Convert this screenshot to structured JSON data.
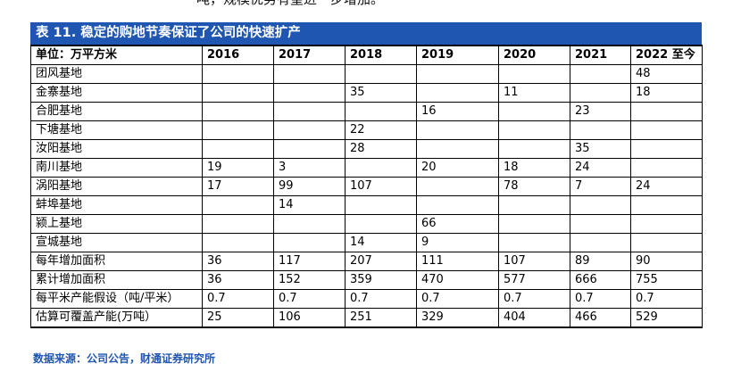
{
  "top_text": "吨，规模优势有望进一步增加。",
  "table": {
    "title": "表 11. 稳定的购地节奏保证了公司的快速扩产",
    "headers": [
      "单位：万平方米",
      "2016",
      "2017",
      "2018",
      "2019",
      "2020",
      "2021",
      "2022 至今"
    ],
    "rows": [
      [
        "团风基地",
        "",
        "",
        "",
        "",
        "",
        "",
        "48"
      ],
      [
        "金寨基地",
        "",
        "",
        "35",
        "",
        "11",
        "",
        "18"
      ],
      [
        "合肥基地",
        "",
        "",
        "",
        "16",
        "",
        "23",
        ""
      ],
      [
        "下塘基地",
        "",
        "",
        "22",
        "",
        "",
        "",
        ""
      ],
      [
        "汝阳基地",
        "",
        "",
        "28",
        "",
        "",
        "35",
        ""
      ],
      [
        "南川基地",
        "19",
        "3",
        "",
        "20",
        "18",
        "24",
        ""
      ],
      [
        "涡阳基地",
        "17",
        "99",
        "107",
        "",
        "78",
        "7",
        "24"
      ],
      [
        "蚌埠基地",
        "",
        "14",
        "",
        "",
        "",
        "",
        ""
      ],
      [
        "颍上基地",
        "",
        "",
        "",
        "66",
        "",
        "",
        ""
      ],
      [
        "宣城基地",
        "",
        "",
        "14",
        "9",
        "",
        "",
        ""
      ],
      [
        "每年增加面积",
        "36",
        "117",
        "207",
        "111",
        "107",
        "89",
        "90"
      ],
      [
        "累计增加面积",
        "36",
        "152",
        "359",
        "470",
        "577",
        "666",
        "755"
      ],
      [
        "每平米产能假设（吨/平米）",
        "0.7",
        "0.7",
        "0.7",
        "0.7",
        "0.7",
        "0.7",
        "0.7"
      ],
      [
        "估算可覆盖产能(万吨）",
        "25",
        "106",
        "251",
        "329",
        "404",
        "466",
        "529"
      ]
    ]
  },
  "source": "数据来源：公司公告，财通证券研究所",
  "colors": {
    "title_bg": "#1f56b1",
    "title_text": "#ffffff",
    "source_text": "#1f56b1"
  }
}
